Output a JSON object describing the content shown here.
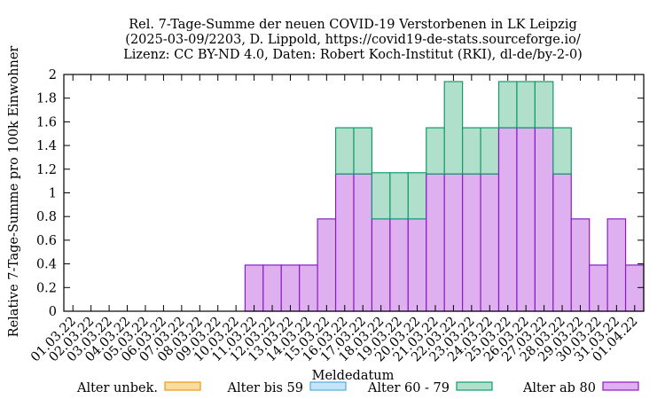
{
  "chart_data": {
    "type": "bar",
    "stacked": true,
    "title": [
      "Rel. 7-Tage-Summe der neuen COVID-19 Verstorbenen in LK Leipzig",
      "(2025-03-09/2203, D. Lippold, https://covid19-de-stats.sourceforge.io/",
      "Lizenz: CC BY-ND 4.0, Daten: Robert Koch-Institut (RKI), dl-de/by-2-0)"
    ],
    "xlabel": "Meldedatum",
    "ylabel": "Relative 7-Tage-Summe pro 100k Einwohner",
    "ylim": [
      0,
      2
    ],
    "yticks": [
      "0",
      "0.2",
      "0.4",
      "0.6",
      "0.8",
      "1",
      "1.2",
      "1.4",
      "1.6",
      "1.8",
      "2"
    ],
    "grid": false,
    "legend_position": "bottom",
    "categories": [
      "01.03.22",
      "02.03.22",
      "03.03.22",
      "04.03.22",
      "05.03.22",
      "06.03.22",
      "07.03.22",
      "08.03.22",
      "09.03.22",
      "10.03.22",
      "11.03.22",
      "12.03.22",
      "13.03.22",
      "14.03.22",
      "15.03.22",
      "16.03.22",
      "17.03.22",
      "18.03.22",
      "19.03.22",
      "20.03.22",
      "21.03.22",
      "22.03.22",
      "23.03.22",
      "24.03.22",
      "25.03.22",
      "26.03.22",
      "27.03.22",
      "28.03.22",
      "29.03.22",
      "30.03.22",
      "31.03.22",
      "01.04.22"
    ],
    "series": [
      {
        "name": "Alter unbek.",
        "fill": "#f8dca0",
        "stroke": "#e89a1a",
        "values": [
          0,
          0,
          0,
          0,
          0,
          0,
          0,
          0,
          0,
          0,
          0,
          0,
          0,
          0,
          0,
          0,
          0,
          0,
          0,
          0,
          0,
          0,
          0,
          0,
          0,
          0,
          0,
          0,
          0,
          0,
          0,
          0
        ]
      },
      {
        "name": "Alter bis 59",
        "fill": "#c6e4f7",
        "stroke": "#5aa9de",
        "values": [
          0,
          0,
          0,
          0,
          0,
          0,
          0,
          0,
          0,
          0,
          0,
          0,
          0,
          0,
          0,
          0,
          0,
          0,
          0,
          0,
          0,
          0,
          0,
          0,
          0,
          0,
          0,
          0,
          0,
          0,
          0,
          0
        ]
      },
      {
        "name": "Alter 60 - 79",
        "fill": "#b0e0cc",
        "stroke": "#139a6c",
        "values": [
          0,
          0,
          0,
          0,
          0,
          0,
          0,
          0,
          0,
          0,
          0,
          0,
          0,
          0,
          0,
          0.39,
          0.39,
          0.39,
          0.39,
          0.39,
          0.39,
          0.78,
          0.39,
          0.39,
          0.39,
          0.39,
          0.39,
          0.39,
          0,
          0,
          0,
          0
        ]
      },
      {
        "name": "Alter ab 80",
        "fill": "#dfb0f0",
        "stroke": "#8a1cc4",
        "values": [
          0,
          0,
          0,
          0,
          0,
          0,
          0,
          0,
          0,
          0,
          0.39,
          0.39,
          0.39,
          0.39,
          0.78,
          1.16,
          1.16,
          0.78,
          0.78,
          0.78,
          1.16,
          1.16,
          1.16,
          1.16,
          1.55,
          1.55,
          1.55,
          1.16,
          0.78,
          0.39,
          0.78,
          0.39
        ]
      }
    ]
  }
}
